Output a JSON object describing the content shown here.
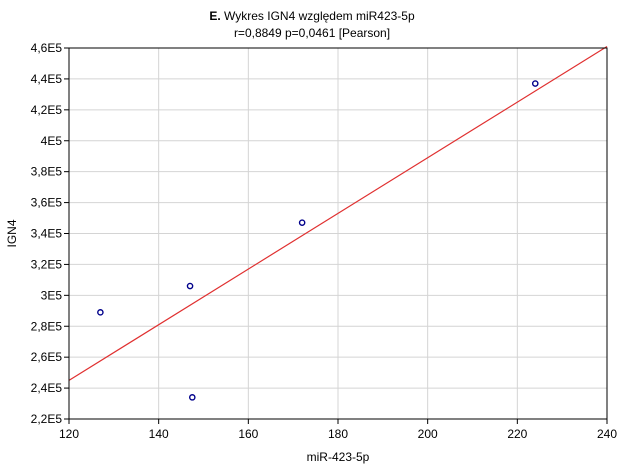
{
  "chart_data": {
    "type": "scatter",
    "panel_label": "E.",
    "title": "Wykres IGN4 względem miR423-5p",
    "subtitle": "r=0,8849 p=0,0461 [Pearson]",
    "xlabel": "miR-423-5p",
    "ylabel": "IGN4",
    "xlim": [
      120,
      240
    ],
    "ylim": [
      220000,
      460000
    ],
    "x_ticks": [
      120,
      140,
      160,
      180,
      200,
      220,
      240
    ],
    "y_ticks": [
      220000,
      240000,
      260000,
      280000,
      300000,
      320000,
      340000,
      360000,
      380000,
      400000,
      420000,
      440000,
      460000
    ],
    "x_tick_labels": [
      "120",
      "140",
      "160",
      "180",
      "200",
      "220",
      "240"
    ],
    "y_tick_labels": [
      "2,2E5",
      "2,4E5",
      "2,6E5",
      "2,8E5",
      "3E5",
      "3,2E5",
      "3,4E5",
      "3,6E5",
      "3,8E5",
      "4E5",
      "4,2E5",
      "4,4E5",
      "4,6E5"
    ],
    "grid": true,
    "points": [
      {
        "x": 127,
        "y": 289000
      },
      {
        "x": 147,
        "y": 306000
      },
      {
        "x": 147.5,
        "y": 234000
      },
      {
        "x": 172,
        "y": 347000
      },
      {
        "x": 224,
        "y": 437000
      }
    ],
    "fit_line": {
      "x": [
        120,
        240
      ],
      "y": [
        245000,
        461000
      ]
    },
    "colors": {
      "points": "#00008b",
      "fit_line": "#e03030",
      "grid": "#d4d4d4",
      "axes": "#000000"
    }
  }
}
